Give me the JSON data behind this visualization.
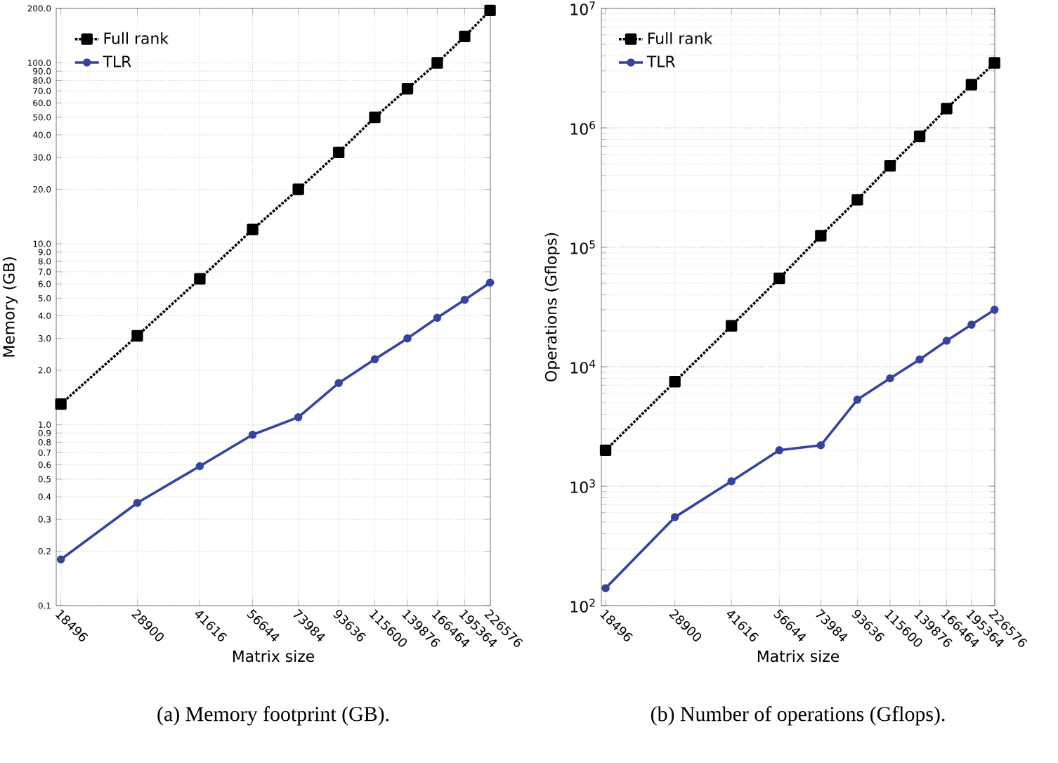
{
  "chart_data": [
    {
      "type": "line",
      "title": "(a) Memory footprint (GB).",
      "xlabel": "Matrix size",
      "ylabel": "Memory (GB)",
      "log": "xy",
      "grid": true,
      "legend": "top left",
      "x": [
        18496,
        28900,
        41616,
        56644,
        73984,
        93636,
        115600,
        139876,
        166464,
        195364,
        226576
      ],
      "xlim": [
        18000,
        227000
      ],
      "xticks": [
        18496,
        28900,
        41616,
        56644,
        73984,
        93636,
        115600,
        139876,
        166464,
        195364,
        226576
      ],
      "ylim": [
        0.1,
        200
      ],
      "yticks": [
        0.1,
        0.2,
        0.3,
        0.4,
        0.5,
        0.6,
        0.7,
        0.8,
        0.9,
        {
          "value": 1,
          "label": "1.0"
        },
        {
          "value": 2,
          "label": "2.0"
        },
        {
          "value": 3,
          "label": "3.0"
        },
        {
          "value": 4,
          "label": "4.0"
        },
        {
          "value": 5,
          "label": "5.0"
        },
        {
          "value": 6,
          "label": "6.0"
        },
        {
          "value": 7,
          "label": "7.0"
        },
        {
          "value": 8,
          "label": "8.0"
        },
        {
          "value": 9,
          "label": "9.0"
        },
        {
          "value": 10,
          "label": "10.0"
        },
        {
          "value": 20,
          "label": "20.0"
        },
        {
          "value": 30,
          "label": "30.0"
        },
        {
          "value": 40,
          "label": "40.0"
        },
        {
          "value": 50,
          "label": "50.0"
        },
        {
          "value": 60,
          "label": "60.0"
        },
        {
          "value": 70,
          "label": "70.0"
        },
        {
          "value": 80,
          "label": "80.0"
        },
        {
          "value": 90,
          "label": "90.0"
        },
        {
          "value": 100,
          "label": "100.0"
        },
        {
          "value": 200,
          "label": "200.0"
        }
      ],
      "series": [
        {
          "name": "Full rank",
          "color": "#000000",
          "marker": "square",
          "line_style": "dotted",
          "values": [
            1.3,
            3.1,
            6.4,
            12,
            20,
            32,
            50,
            72,
            100,
            140,
            195
          ]
        },
        {
          "name": "TLR",
          "color": "#3444a0",
          "marker": "circle",
          "line_style": "solid",
          "values": [
            0.18,
            0.37,
            0.59,
            0.88,
            1.1,
            1.7,
            2.3,
            3.0,
            3.9,
            4.9,
            6.1
          ]
        }
      ]
    },
    {
      "type": "line",
      "title": "(b) Number of operations (Gflops).",
      "xlabel": "Matrix size",
      "ylabel": "Operations (Gflops)",
      "log": "xy",
      "grid": true,
      "legend": "top left",
      "x": [
        18496,
        28900,
        41616,
        56644,
        73984,
        93636,
        115600,
        139876,
        166464,
        195364,
        226576
      ],
      "xlim": [
        18000,
        227000
      ],
      "xticks": [
        18496,
        28900,
        41616,
        56644,
        73984,
        93636,
        115600,
        139876,
        166464,
        195364,
        226576
      ],
      "ylim": [
        100,
        10000000
      ],
      "yticks": [
        {
          "value": 100,
          "label": "10$^{2}$"
        },
        {
          "value": 1000,
          "label": "10$^{3}$"
        },
        {
          "value": 10000,
          "label": "10$^{4}$"
        },
        {
          "value": 100000,
          "label": "10$^{5}$"
        },
        {
          "value": 1000000,
          "label": "10$^{6}$"
        },
        {
          "value": 10000000,
          "label": "10$^{7}$"
        }
      ],
      "series": [
        {
          "name": "Full rank",
          "color": "#000000",
          "marker": "square",
          "line_style": "dotted",
          "values": [
            2000,
            7500,
            22000,
            55000,
            125000,
            250000,
            480000,
            850000,
            1450000,
            2300000,
            3500000
          ]
        },
        {
          "name": "TLR",
          "color": "#3444a0",
          "marker": "circle",
          "line_style": "solid",
          "values": [
            140,
            550,
            1100,
            2000,
            2200,
            5300,
            8000,
            11500,
            16500,
            22500,
            30000
          ]
        }
      ]
    }
  ]
}
